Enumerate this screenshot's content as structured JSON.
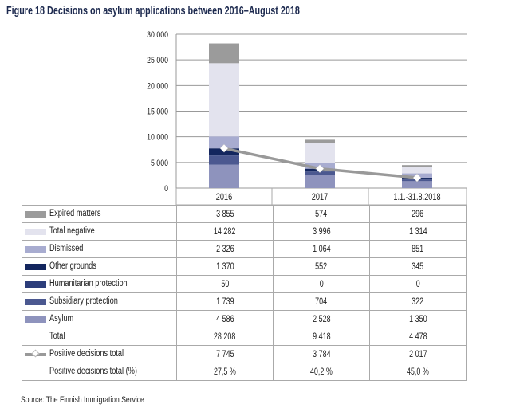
{
  "title": "Figure 18 Decisions on asylum applications between 2016–August 2018",
  "source": "Source: The Finnish Immigration Service",
  "chart_data": {
    "type": "bar",
    "stacked": true,
    "categories": [
      "2016",
      "2017",
      "1.1.-31.8.2018"
    ],
    "ylim": [
      0,
      30000
    ],
    "yticks": [
      0,
      5000,
      10000,
      15000,
      20000,
      25000,
      30000
    ],
    "ytick_labels": [
      "0",
      "5 000",
      "10 000",
      "15 000",
      "20 000",
      "25 000",
      "30 000"
    ],
    "grid": true,
    "series": [
      {
        "name": "Expired matters",
        "values": [
          3855,
          574,
          296
        ],
        "labels": [
          "3 855",
          "574",
          "296"
        ],
        "color": "#9b9b9b"
      },
      {
        "name": "Total negative",
        "values": [
          14282,
          3996,
          1314
        ],
        "labels": [
          "14 282",
          "3 996",
          "1 314"
        ],
        "color": "#e3e3ee"
      },
      {
        "name": "Dismissed",
        "values": [
          2326,
          1064,
          851
        ],
        "labels": [
          "2 326",
          "1 064",
          "851"
        ],
        "color": "#a8acd0"
      },
      {
        "name": "Other grounds",
        "values": [
          1370,
          552,
          345
        ],
        "labels": [
          "1 370",
          "552",
          "345"
        ],
        "color": "#13265e"
      },
      {
        "name": "Humanitarian protection",
        "values": [
          50,
          0,
          0
        ],
        "labels": [
          "50",
          "0",
          "0"
        ],
        "color": "#2c3d7a"
      },
      {
        "name": "Subsidiary protection",
        "values": [
          1739,
          704,
          322
        ],
        "labels": [
          "1 739",
          "704",
          "322"
        ],
        "color": "#4b5890"
      },
      {
        "name": "Asylum",
        "values": [
          4586,
          2528,
          1350
        ],
        "labels": [
          "4 586",
          "2 528",
          "1 350"
        ],
        "color": "#8e93bd"
      }
    ],
    "total": {
      "name": "Total",
      "labels": [
        "28 208",
        "9 418",
        "4 478"
      ]
    },
    "line": {
      "name": "Positive decisions total",
      "values": [
        7745,
        3784,
        2017
      ],
      "labels": [
        "7 745",
        "3 784",
        "2 017"
      ],
      "color": "#999999",
      "marker": "white-diamond"
    },
    "percent": {
      "name": "Positive decisions total (%)",
      "labels": [
        "27,5 %",
        "40,2 %",
        "45,0 %"
      ]
    }
  }
}
